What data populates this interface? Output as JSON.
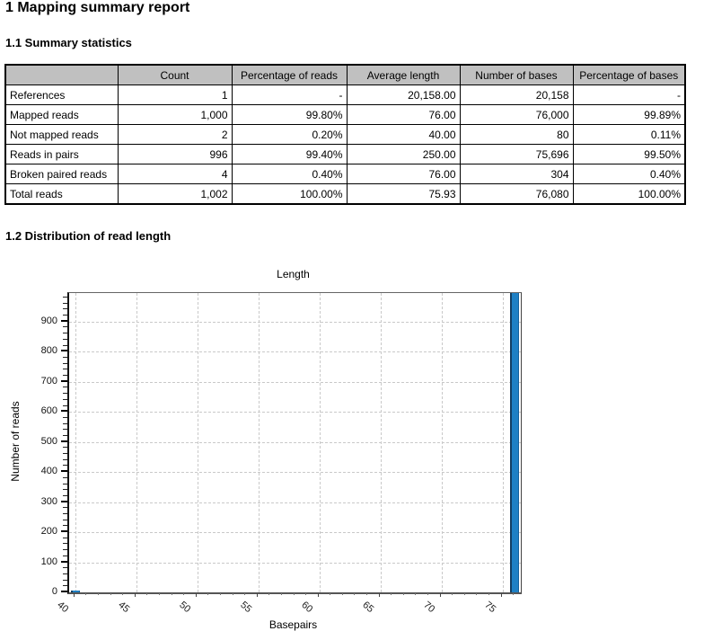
{
  "report": {
    "title": "1 Mapping summary report",
    "sections": [
      {
        "heading": "1.1 Summary statistics"
      },
      {
        "heading": "1.2 Distribution of read length"
      }
    ]
  },
  "table": {
    "header_bg": "#c0c0c0",
    "columns": [
      "",
      "Count",
      "Percentage of reads",
      "Average length",
      "Number of bases",
      "Percentage of bases"
    ],
    "rows": [
      {
        "label": "References",
        "values": [
          "1",
          "-",
          "20,158.00",
          "20,158",
          "-"
        ]
      },
      {
        "label": "Mapped reads",
        "values": [
          "1,000",
          "99.80%",
          "76.00",
          "76,000",
          "99.89%"
        ]
      },
      {
        "label": "Not mapped reads",
        "values": [
          "2",
          "0.20%",
          "40.00",
          "80",
          "0.11%"
        ]
      },
      {
        "label": "Reads in pairs",
        "values": [
          "996",
          "99.40%",
          "250.00",
          "75,696",
          "99.50%"
        ]
      },
      {
        "label": "Broken paired reads",
        "values": [
          "4",
          "0.40%",
          "76.00",
          "304",
          "0.40%"
        ]
      },
      {
        "label": "Total reads",
        "values": [
          "1,002",
          "100.00%",
          "75.93",
          "76,080",
          "100.00%"
        ]
      }
    ]
  },
  "chart_data": {
    "type": "bar",
    "title": "Length",
    "xlabel": "Basepairs",
    "ylabel": "Number of reads",
    "x": [
      40,
      76
    ],
    "values": [
      2,
      1000
    ],
    "bar_unit_width": 1,
    "xlim": [
      39.5,
      76.5
    ],
    "ylim": [
      0,
      995
    ],
    "x_major_ticks": [
      40,
      45,
      50,
      55,
      60,
      65,
      70,
      75
    ],
    "x_minor_step": 1,
    "y_major_ticks": [
      0,
      100,
      200,
      300,
      400,
      500,
      600,
      700,
      800,
      900
    ],
    "y_minor_step": 20,
    "grid": true,
    "legend": "none",
    "bar_color": "#1e80c4",
    "bar_edge_color": "#123f63"
  }
}
